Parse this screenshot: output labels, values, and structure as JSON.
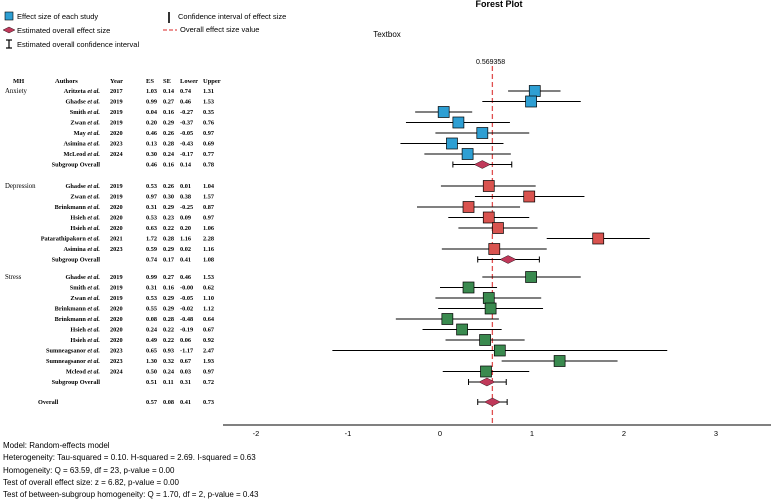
{
  "chart_data": {
    "type": "forest",
    "title": "Forest Plot",
    "textbox_label": "Textbox",
    "overall_line_label": "0.569358",
    "overall_line_value": 0.569358,
    "xlim": [
      -2.35,
      3.55
    ],
    "x_ticks": [
      -2,
      -1,
      0,
      1,
      2,
      3
    ],
    "columns": [
      "MH",
      "Authors",
      "Year",
      "ES",
      "SE",
      "Lower",
      "Upper"
    ],
    "legend": {
      "effect_size": "Effect size of each study",
      "overall_effect": "Estimated overall effect size",
      "overall_ci": "Estimated overall confidence interval",
      "ci": "Confidence interval of effect size",
      "overall_value": "Overall effect size value"
    },
    "colors": {
      "Anxiety": "#2e9fd3",
      "Depression": "#d9534f",
      "Stress": "#3a8a4f",
      "diamond": "#c0395a",
      "reference_line": "#e05050"
    },
    "groups": [
      {
        "name": "Anxiety",
        "studies": [
          {
            "author": "Aritzeta",
            "etal": "et al.",
            "year": "2017",
            "es": "1.03",
            "se": "0.14",
            "lower": "0.74",
            "upper": "1.31",
            "x": 1.03,
            "lo": 0.74,
            "hi": 1.31
          },
          {
            "author": "Ghadse",
            "etal": "et al.",
            "year": "2019",
            "es": "0.99",
            "se": "0.27",
            "lower": "0.46",
            "upper": "1.53",
            "x": 0.99,
            "lo": 0.46,
            "hi": 1.53
          },
          {
            "author": "Smith",
            "etal": "et al.",
            "year": "2019",
            "es": "0.04",
            "se": "0.16",
            "lower": "-0.27",
            "upper": "0.35",
            "x": 0.04,
            "lo": -0.27,
            "hi": 0.35
          },
          {
            "author": "Zwan",
            "etal": "et al.",
            "year": "2019",
            "es": "0.20",
            "se": "0.29",
            "lower": "-0.37",
            "upper": "0.76",
            "x": 0.2,
            "lo": -0.37,
            "hi": 0.76
          },
          {
            "author": "May",
            "etal": "et al.",
            "year": "2020",
            "es": "0.46",
            "se": "0.26",
            "lower": "-0.05",
            "upper": "0.97",
            "x": 0.46,
            "lo": -0.05,
            "hi": 0.97
          },
          {
            "author": "Asimina",
            "etal": "et al.",
            "year": "2023",
            "es": "0.13",
            "se": "0.28",
            "lower": "-0.43",
            "upper": "0.69",
            "x": 0.13,
            "lo": -0.43,
            "hi": 0.69
          },
          {
            "author": "McLeod",
            "etal": "et al.",
            "year": "2024",
            "es": "0.30",
            "se": "0.24",
            "lower": "-0.17",
            "upper": "0.77",
            "x": 0.3,
            "lo": -0.17,
            "hi": 0.77
          }
        ],
        "subgroup": {
          "label": "Subgroup Overall",
          "es": "0.46",
          "se": "0.16",
          "lower": "0.14",
          "upper": "0.78",
          "x": 0.46,
          "lo": 0.14,
          "hi": 0.78
        }
      },
      {
        "name": "Depression",
        "studies": [
          {
            "author": "Ghadse",
            "etal": "et al.",
            "year": "2019",
            "es": "0.53",
            "se": "0.26",
            "lower": "0.01",
            "upper": "1.04",
            "x": 0.53,
            "lo": 0.01,
            "hi": 1.04
          },
          {
            "author": "Zwan",
            "etal": "et al.",
            "year": "2019",
            "es": "0.97",
            "se": "0.30",
            "lower": "0.38",
            "upper": "1.57",
            "x": 0.97,
            "lo": 0.38,
            "hi": 1.57
          },
          {
            "author": "Brinkmann",
            "etal": "et al.",
            "year": "2020",
            "es": "0.31",
            "se": "0.29",
            "lower": "-0.25",
            "upper": "0.87",
            "x": 0.31,
            "lo": -0.25,
            "hi": 0.87
          },
          {
            "author": "Hsieh",
            "etal": "et al.",
            "year": "2020",
            "es": "0.53",
            "se": "0.23",
            "lower": "0.09",
            "upper": "0.97",
            "x": 0.53,
            "lo": 0.09,
            "hi": 0.97
          },
          {
            "author": "Hsieh",
            "etal": "et al.",
            "year": "2020",
            "es": "0.63",
            "se": "0.22",
            "lower": "0.20",
            "upper": "1.06",
            "x": 0.63,
            "lo": 0.2,
            "hi": 1.06
          },
          {
            "author": "Patarathipakorn",
            "etal": "et al.",
            "year": "2021",
            "es": "1.72",
            "se": "0.28",
            "lower": "1.16",
            "upper": "2.28",
            "x": 1.72,
            "lo": 1.16,
            "hi": 2.28
          },
          {
            "author": "Asimina",
            "etal": "et al.",
            "year": "2023",
            "es": "0.59",
            "se": "0.29",
            "lower": "0.02",
            "upper": "1.16",
            "x": 0.59,
            "lo": 0.02,
            "hi": 1.16
          }
        ],
        "subgroup": {
          "label": "Subgroup Overall",
          "es": "0.74",
          "se": "0.17",
          "lower": "0.41",
          "upper": "1.08",
          "x": 0.74,
          "lo": 0.41,
          "hi": 1.08
        }
      },
      {
        "name": "Stress",
        "studies": [
          {
            "author": "Ghadse",
            "etal": "et al.",
            "year": "2019",
            "es": "0.99",
            "se": "0.27",
            "lower": "0.46",
            "upper": "1.53",
            "x": 0.99,
            "lo": 0.46,
            "hi": 1.53
          },
          {
            "author": "Smith",
            "etal": "et al.",
            "year": "2019",
            "es": "0.31",
            "se": "0.16",
            "lower": "-0.00",
            "upper": "0.62",
            "x": 0.31,
            "lo": 0.0,
            "hi": 0.62
          },
          {
            "author": "Zwan",
            "etal": "et al.",
            "year": "2019",
            "es": "0.53",
            "se": "0.29",
            "lower": "-0.05",
            "upper": "1.10",
            "x": 0.53,
            "lo": -0.05,
            "hi": 1.1
          },
          {
            "author": "Brinkmann",
            "etal": "et al.",
            "year": "2020",
            "es": "0.55",
            "se": "0.29",
            "lower": "-0.02",
            "upper": "1.12",
            "x": 0.55,
            "lo": -0.02,
            "hi": 1.12
          },
          {
            "author": "Brinkmann",
            "etal": "et al.",
            "year": "2020",
            "es": "0.08",
            "se": "0.28",
            "lower": "-0.48",
            "upper": "0.64",
            "x": 0.08,
            "lo": -0.48,
            "hi": 0.64
          },
          {
            "author": "Hsieh",
            "etal": "et al.",
            "year": "2020",
            "es": "0.24",
            "se": "0.22",
            "lower": "-0.19",
            "upper": "0.67",
            "x": 0.24,
            "lo": -0.19,
            "hi": 0.67
          },
          {
            "author": "Hsieh",
            "etal": "et al.",
            "year": "2020",
            "es": "0.49",
            "se": "0.22",
            "lower": "0.06",
            "upper": "0.92",
            "x": 0.49,
            "lo": 0.06,
            "hi": 0.92
          },
          {
            "author": "Sumneagsanor",
            "etal": "et al.",
            "year": "2023",
            "es": "0.65",
            "se": "0.93",
            "lower": "-1.17",
            "upper": "2.47",
            "x": 0.65,
            "lo": -1.17,
            "hi": 2.47
          },
          {
            "author": "Sumneagsanor",
            "etal": "et al.",
            "year": "2023",
            "es": "1.30",
            "se": "0.32",
            "lower": "0.67",
            "upper": "1.93",
            "x": 1.3,
            "lo": 0.67,
            "hi": 1.93
          },
          {
            "author": "Mcleod",
            "etal": "et al.",
            "year": "2024",
            "es": "0.50",
            "se": "0.24",
            "lower": "0.03",
            "upper": "0.97",
            "x": 0.5,
            "lo": 0.03,
            "hi": 0.97
          }
        ],
        "subgroup": {
          "label": "Subgroup Overall",
          "es": "0.51",
          "se": "0.11",
          "lower": "0.31",
          "upper": "0.72",
          "x": 0.51,
          "lo": 0.31,
          "hi": 0.72
        }
      }
    ],
    "overall": {
      "label": "Overall",
      "es": "0.57",
      "se": "0.08",
      "lower": "0.41",
      "upper": "0.73",
      "x": 0.57,
      "lo": 0.41,
      "hi": 0.73
    }
  },
  "summary": {
    "model": "Model: Random-effects model",
    "heterogeneity": "Heterogeneity: Tau-squared = 0.10. H-squared = 2.69. I-squared = 0.63",
    "homogeneity": "Homogeneity: Q = 63.59, df = 23, p-value = 0.00",
    "test_overall": "Test of overall effect size: z = 6.82, p-value = 0.00",
    "test_between": "Test of between-subgroup homogeneity: Q = 1.70, df = 2, p-value = 0.43"
  }
}
